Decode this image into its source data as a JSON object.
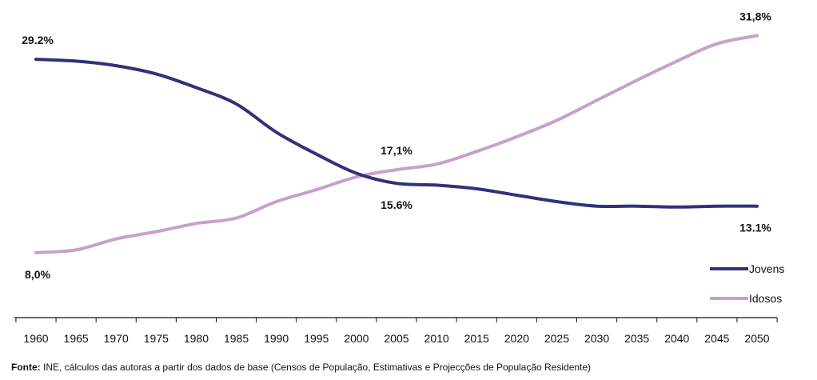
{
  "chart_data": {
    "type": "line",
    "title": "",
    "xlabel": "",
    "ylabel": "",
    "x": [
      "1960",
      "1965",
      "1970",
      "1975",
      "1980",
      "1985",
      "1990",
      "1995",
      "2000",
      "2005",
      "2010",
      "2015",
      "2020",
      "2025",
      "2030",
      "2035",
      "2040",
      "2045",
      "2050"
    ],
    "series": [
      {
        "name": "Jovens",
        "color": "#33307a",
        "values": [
          29.2,
          29.0,
          28.5,
          27.6,
          26.1,
          24.3,
          21.2,
          18.8,
          16.7,
          15.6,
          15.4,
          15.0,
          14.3,
          13.6,
          13.1,
          13.1,
          13.0,
          13.1,
          13.1
        ]
      },
      {
        "name": "Idosos",
        "color": "#c8a0cc",
        "values": [
          8.0,
          8.3,
          9.5,
          10.3,
          11.2,
          11.8,
          13.6,
          14.9,
          16.3,
          17.1,
          17.7,
          19.1,
          20.7,
          22.5,
          24.7,
          26.9,
          29.0,
          30.9,
          31.8
        ]
      }
    ],
    "ylim": [
      6,
      33
    ],
    "grid": false,
    "legend_position": "bottom-right",
    "annotations": [
      {
        "text": "29.2%",
        "series": 0,
        "index": 0,
        "pos": "above"
      },
      {
        "text": "8,0%",
        "series": 1,
        "index": 0,
        "pos": "below"
      },
      {
        "text": "17,1%",
        "series": 1,
        "index": 9,
        "pos": "above"
      },
      {
        "text": "15.6%",
        "series": 0,
        "index": 9,
        "pos": "below"
      },
      {
        "text": "31,8%",
        "series": 1,
        "index": 18,
        "pos": "above"
      },
      {
        "text": "13.1%",
        "series": 0,
        "index": 18,
        "pos": "below"
      }
    ]
  },
  "source": {
    "label": "Fonte:",
    "text": " INE, cálculos das autoras a partir dos dados de base (Censos de População, Estimativas e Projecções de População Residente)"
  }
}
